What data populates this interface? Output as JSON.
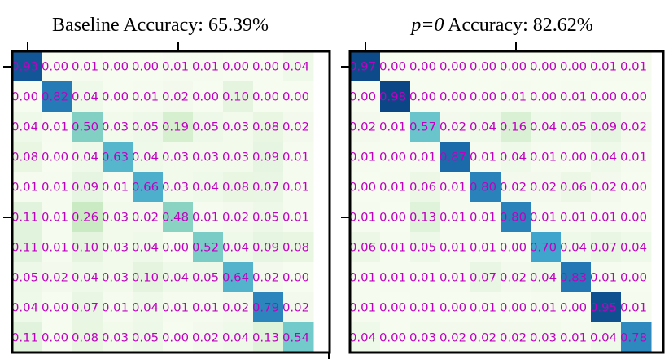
{
  "chart_data": [
    {
      "type": "heatmap",
      "title": "Baseline Accuracy: 65.39%",
      "rows": 10,
      "cols": 10,
      "colormap": "GnBu",
      "label_color": "#c000c0",
      "values": [
        [
          0.93,
          0.0,
          0.01,
          0.0,
          0.0,
          0.01,
          0.01,
          0.0,
          0.0,
          0.04
        ],
        [
          0.0,
          0.82,
          0.04,
          0.0,
          0.01,
          0.02,
          0.0,
          0.1,
          0.0,
          0.0
        ],
        [
          0.04,
          0.01,
          0.5,
          0.03,
          0.05,
          0.19,
          0.05,
          0.03,
          0.08,
          0.02
        ],
        [
          0.08,
          0.0,
          0.04,
          0.63,
          0.04,
          0.03,
          0.03,
          0.03,
          0.09,
          0.01
        ],
        [
          0.01,
          0.01,
          0.09,
          0.01,
          0.66,
          0.03,
          0.04,
          0.08,
          0.07,
          0.01
        ],
        [
          0.11,
          0.01,
          0.26,
          0.03,
          0.02,
          0.48,
          0.01,
          0.02,
          0.05,
          0.01
        ],
        [
          0.11,
          0.01,
          0.1,
          0.03,
          0.04,
          0.0,
          0.52,
          0.04,
          0.09,
          0.08
        ],
        [
          0.05,
          0.02,
          0.04,
          0.03,
          0.1,
          0.04,
          0.05,
          0.64,
          0.02,
          0.0
        ],
        [
          0.04,
          0.0,
          0.07,
          0.01,
          0.04,
          0.01,
          0.01,
          0.02,
          0.79,
          0.02
        ],
        [
          0.11,
          0.0,
          0.08,
          0.03,
          0.05,
          0.0,
          0.02,
          0.04,
          0.13,
          0.54
        ]
      ]
    },
    {
      "type": "heatmap",
      "title_italic": "p=0",
      "title_rest": " Accuracy: 82.62%",
      "rows": 10,
      "cols": 10,
      "colormap": "GnBu",
      "label_color": "#c000c0",
      "values": [
        [
          0.97,
          0.0,
          0.0,
          0.0,
          0.0,
          0.0,
          0.0,
          0.0,
          0.01,
          0.01
        ],
        [
          0.0,
          0.98,
          0.0,
          0.0,
          0.0,
          0.01,
          0.0,
          0.01,
          0.0,
          0.0
        ],
        [
          0.02,
          0.01,
          0.57,
          0.02,
          0.04,
          0.16,
          0.04,
          0.05,
          0.09,
          0.02
        ],
        [
          0.01,
          0.0,
          0.01,
          0.87,
          0.01,
          0.04,
          0.01,
          0.0,
          0.04,
          0.01
        ],
        [
          0.0,
          0.01,
          0.06,
          0.01,
          0.8,
          0.02,
          0.02,
          0.06,
          0.02,
          0.0
        ],
        [
          0.01,
          0.0,
          0.13,
          0.01,
          0.01,
          0.8,
          0.01,
          0.01,
          0.01,
          0.0
        ],
        [
          0.06,
          0.01,
          0.05,
          0.01,
          0.01,
          0.0,
          0.7,
          0.04,
          0.07,
          0.04
        ],
        [
          0.01,
          0.01,
          0.01,
          0.01,
          0.07,
          0.02,
          0.04,
          0.83,
          0.01,
          0.0
        ],
        [
          0.01,
          0.0,
          0.01,
          0.0,
          0.01,
          0.0,
          0.01,
          0.0,
          0.95,
          0.01
        ],
        [
          0.04,
          0.0,
          0.03,
          0.02,
          0.02,
          0.02,
          0.03,
          0.01,
          0.04,
          0.78
        ]
      ]
    }
  ]
}
